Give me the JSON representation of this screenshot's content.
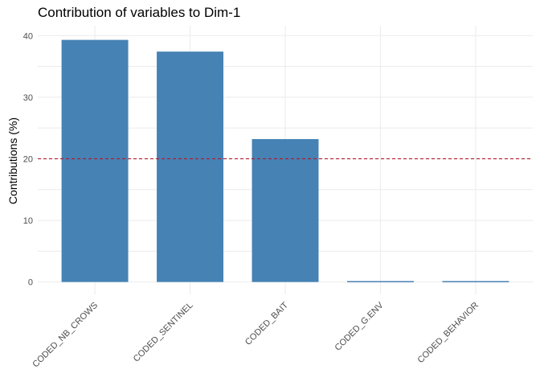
{
  "chart_data": {
    "type": "bar",
    "title": "Contribution of variables to Dim-1",
    "xlabel": "",
    "ylabel": "Contributions (%)",
    "categories": [
      "CODED_NB_CROWS",
      "CODED_SENTINEL",
      "CODED_BAIT",
      "CODED_G.ENV",
      "CODED_BEHAVIOR"
    ],
    "values": [
      39.3,
      37.4,
      23.2,
      0.15,
      0.15
    ],
    "ylim": [
      -2,
      41.6
    ],
    "yticks": [
      0,
      10,
      20,
      30,
      40
    ],
    "reference_line": 20,
    "bar_color": "#4682B4",
    "reference_line_color": "#B2182B",
    "grid": true,
    "legend": "none"
  }
}
